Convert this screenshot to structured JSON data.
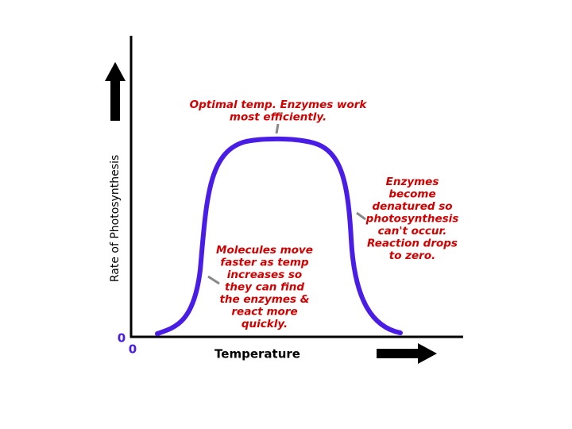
{
  "axes": {
    "y_label": "Rate of Photosynthesis",
    "x_label": "Temperature",
    "y_origin": "0",
    "x_origin": "0"
  },
  "annotations": [
    {
      "lines": [
        "Optimal temp. Enzymes work",
        "most efficiently."
      ]
    },
    {
      "lines": [
        "Enzymes",
        "become",
        "denatured so",
        "photosynthesis",
        "can't occur.",
        "Reaction drops",
        "to zero."
      ]
    },
    {
      "lines": [
        "Molecules move",
        "faster as temp",
        "increases so",
        "they can find",
        "the enzymes &",
        "react more",
        "quickly."
      ]
    }
  ]
}
